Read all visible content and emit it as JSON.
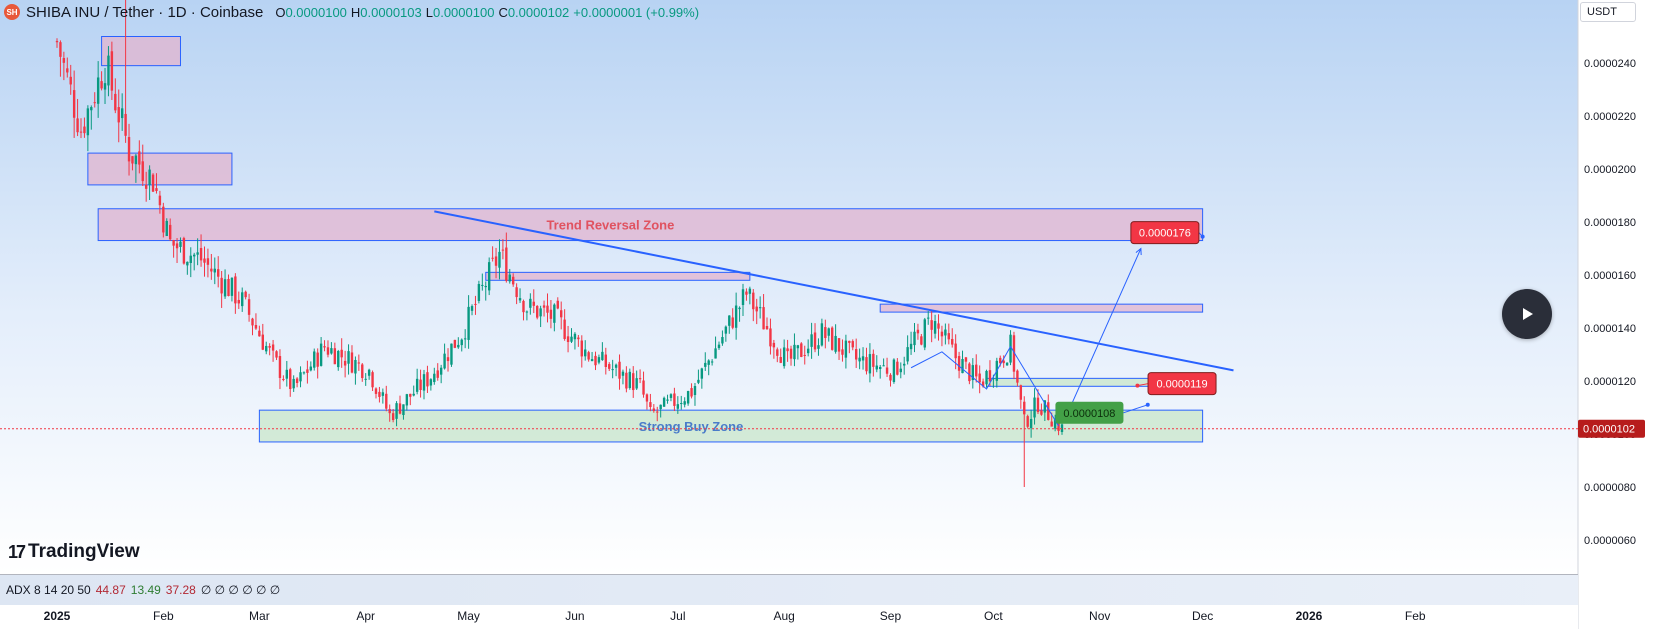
{
  "header": {
    "symbol": "SHIBA INU / Tether · 1D · Coinbase",
    "logo_text": "SH",
    "ohlc": [
      {
        "key": "O",
        "value": "0.0000100"
      },
      {
        "key": "H",
        "value": "0.0000103"
      },
      {
        "key": "L",
        "value": "0.0000100"
      },
      {
        "key": "C",
        "value": "0.0000102"
      }
    ],
    "change": "+0.0000001 (+0.99%)"
  },
  "currency": "USDT",
  "branding": {
    "name": "TradingView",
    "mark": "17"
  },
  "indicator": {
    "label": "ADX 8 14 20 50",
    "values": [
      "44.87",
      "13.49",
      "37.28"
    ],
    "placeholders": "∅ ∅ ∅ ∅ ∅ ∅"
  },
  "colors": {
    "up": "#089981",
    "down": "#f23645",
    "trendline": "#2962ff",
    "reversal_zone": "#e1b4cf",
    "buy_zone": "#c8e6c9",
    "chart_bg_top": "#b8d3f3",
    "chart_bg_bottom": "#ffffff"
  },
  "chart_data": {
    "type": "candlestick",
    "price_axis": {
      "labels": [
        "0.0000240",
        "0.0000220",
        "0.0000200",
        "0.0000180",
        "0.0000160",
        "0.0000140",
        "0.0000120",
        "0.0000100",
        "0.0000080",
        "0.0000060"
      ],
      "current_price": "0.0000102",
      "ylim": [
        5.5e-06,
        2.6e-05
      ]
    },
    "time_axis": [
      "2025",
      "Feb",
      "Mar",
      "Apr",
      "May",
      "Jun",
      "Jul",
      "Aug",
      "Sep",
      "Oct",
      "Nov",
      "Dec",
      "2026",
      "Feb"
    ],
    "annotations": [
      {
        "kind": "zone",
        "label": "Trend Reversal Zone",
        "from": "2025-01-13",
        "to": "2025-12-01",
        "low": 1.73e-05,
        "high": 1.85e-05
      },
      {
        "kind": "zone",
        "label": "Strong Buy Zone",
        "from": "2025-03-01",
        "to": "2025-12-01",
        "low": 9.7e-06,
        "high": 1.09e-05
      },
      {
        "kind": "target",
        "label": "0.0000176",
        "color": "#f23645"
      },
      {
        "kind": "target",
        "label": "0.0000119",
        "color": "#f23645"
      },
      {
        "kind": "target",
        "label": "0.0000108",
        "color": "#43a047"
      }
    ],
    "trendline": {
      "from": [
        "2025-04-21",
        1.84e-05
      ],
      "to": [
        "2025-12-10",
        1.24e-05
      ]
    },
    "series": [
      {
        "ohlc_keypoints": [
          [
            "2025-01-01",
            2.48e-05
          ],
          [
            "2025-01-08",
            2.15e-05
          ],
          [
            "2025-01-15",
            2.4e-05
          ],
          [
            "2025-01-22",
            2.07e-05
          ],
          [
            "2025-01-29",
            1.96e-05
          ],
          [
            "2025-02-03",
            1.72e-05
          ],
          [
            "2025-02-12",
            1.66e-05
          ],
          [
            "2025-02-24",
            1.5e-05
          ],
          [
            "2025-03-05",
            1.28e-05
          ],
          [
            "2025-03-11",
            1.17e-05
          ],
          [
            "2025-03-20",
            1.33e-05
          ],
          [
            "2025-04-02",
            1.24e-05
          ],
          [
            "2025-04-08",
            1.07e-05
          ],
          [
            "2025-04-20",
            1.22e-05
          ],
          [
            "2025-04-29",
            1.38e-05
          ],
          [
            "2025-05-10",
            1.68e-05
          ],
          [
            "2025-05-18",
            1.48e-05
          ],
          [
            "2025-05-26",
            1.44e-05
          ],
          [
            "2025-06-05",
            1.3e-05
          ],
          [
            "2025-06-20",
            1.18e-05
          ],
          [
            "2025-06-23",
            1.07e-05
          ],
          [
            "2025-07-05",
            1.16e-05
          ],
          [
            "2025-07-21",
            1.53e-05
          ],
          [
            "2025-08-02",
            1.27e-05
          ],
          [
            "2025-08-12",
            1.38e-05
          ],
          [
            "2025-08-22",
            1.28e-05
          ],
          [
            "2025-09-02",
            1.24e-05
          ],
          [
            "2025-09-13",
            1.43e-05
          ],
          [
            "2025-09-20",
            1.29e-05
          ],
          [
            "2025-09-27",
            1.19e-05
          ],
          [
            "2025-10-06",
            1.33e-05
          ],
          [
            "2025-10-10",
            1.04e-05
          ],
          [
            "2025-10-14",
            1.12e-05
          ],
          [
            "2025-10-21",
            1.02e-05
          ]
        ]
      }
    ]
  }
}
